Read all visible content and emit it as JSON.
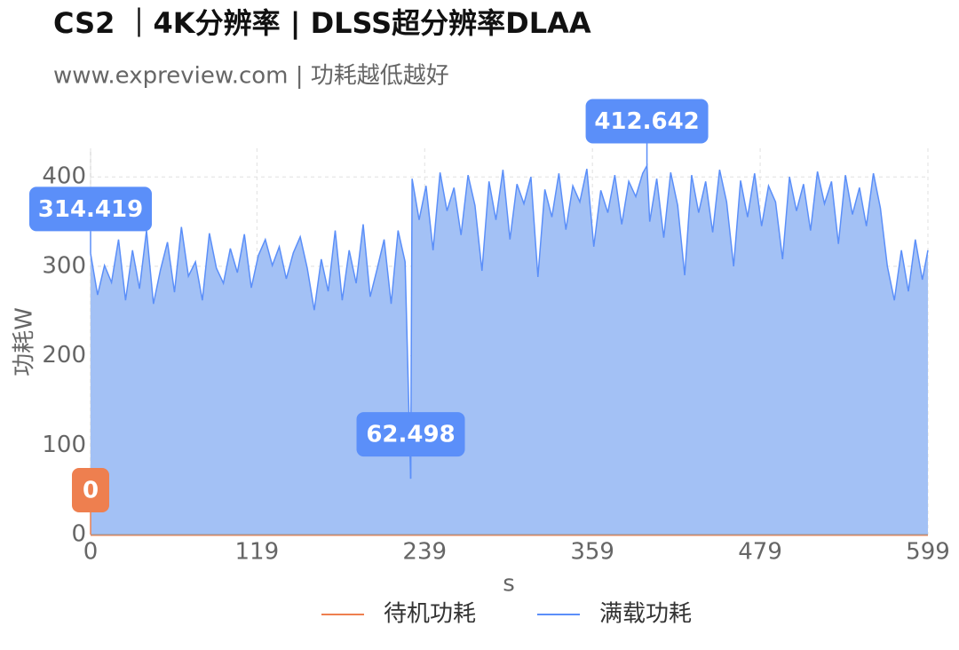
{
  "chart_data": {
    "type": "area-line",
    "title": "CS2 ｜4K分辨率 | DLSS超分辨率DLAA",
    "subtitle": "www.expreview.com | 功耗越低越好",
    "x_label": "s",
    "y_label": "功耗W",
    "xlim": [
      0,
      599
    ],
    "xticks": [
      0,
      119,
      239,
      359,
      479,
      599
    ],
    "ylim": [
      0,
      432
    ],
    "yticks": [
      0,
      100,
      200,
      300,
      400
    ],
    "grid": true,
    "legend": "bottom",
    "x": [
      0,
      5,
      10,
      15,
      20,
      25,
      30,
      35,
      40,
      45,
      50,
      55,
      60,
      65,
      70,
      75,
      80,
      85,
      90,
      95,
      100,
      105,
      110,
      115,
      120,
      125,
      130,
      135,
      140,
      145,
      150,
      155,
      160,
      165,
      170,
      175,
      180,
      185,
      190,
      195,
      200,
      205,
      210,
      215,
      220,
      225,
      229,
      230,
      235,
      240,
      245,
      250,
      255,
      260,
      265,
      270,
      275,
      280,
      285,
      290,
      295,
      300,
      305,
      310,
      315,
      320,
      325,
      330,
      335,
      340,
      345,
      350,
      355,
      360,
      365,
      370,
      375,
      380,
      385,
      390,
      395,
      398,
      400,
      405,
      410,
      415,
      420,
      425,
      430,
      435,
      440,
      445,
      450,
      455,
      460,
      465,
      470,
      475,
      480,
      485,
      490,
      495,
      500,
      505,
      510,
      515,
      520,
      525,
      530,
      535,
      540,
      545,
      550,
      555,
      560,
      565,
      570,
      575,
      580,
      585,
      590,
      595,
      599
    ],
    "series": [
      {
        "name": "待机功耗",
        "color": "#ee7f4f",
        "mark_points": [
          "first"
        ],
        "values": [
          0,
          0,
          0,
          0,
          0,
          0,
          0,
          0,
          0,
          0,
          0,
          0,
          0,
          0,
          0,
          0,
          0,
          0,
          0,
          0,
          0,
          0,
          0,
          0,
          0,
          0,
          0,
          0,
          0,
          0,
          0,
          0,
          0,
          0,
          0,
          0,
          0,
          0,
          0,
          0,
          0,
          0,
          0,
          0,
          0,
          0,
          0,
          0,
          0,
          0,
          0,
          0,
          0,
          0,
          0,
          0,
          0,
          0,
          0,
          0,
          0,
          0,
          0,
          0,
          0,
          0,
          0,
          0,
          0,
          0,
          0,
          0,
          0,
          0,
          0,
          0,
          0,
          0,
          0,
          0,
          0,
          0,
          0,
          0,
          0,
          0,
          0,
          0,
          0,
          0,
          0,
          0,
          0,
          0,
          0,
          0,
          0,
          0,
          0,
          0,
          0,
          0,
          0,
          0,
          0,
          0,
          0,
          0,
          0,
          0,
          0,
          0,
          0,
          0,
          0,
          0,
          0,
          0,
          0,
          0,
          0,
          0,
          0
        ]
      },
      {
        "name": "满载功耗",
        "color": "#5b8ff9",
        "area_color": "#a3c1f5",
        "mark_points": [
          "first",
          "min",
          "max"
        ],
        "values": [
          314.419,
          268,
          301,
          282,
          330,
          262,
          318,
          275,
          340,
          258,
          296,
          327,
          271,
          344,
          289,
          305,
          262,
          337,
          298,
          281,
          320,
          293,
          336,
          276,
          312,
          330,
          301,
          322,
          286,
          315,
          333,
          298,
          251,
          308,
          272,
          340,
          262,
          318,
          281,
          347,
          266,
          297,
          330,
          258,
          340,
          305,
          62.498,
          398,
          352,
          390,
          318,
          405,
          362,
          388,
          335,
          402,
          368,
          295,
          395,
          352,
          408,
          330,
          392,
          370,
          400,
          288,
          386,
          355,
          404,
          341,
          390,
          372,
          409,
          322,
          385,
          360,
          402,
          347,
          395,
          378,
          404,
          412.642,
          350,
          398,
          332,
          405,
          368,
          290,
          402,
          360,
          395,
          338,
          408,
          372,
          300,
          396,
          355,
          404,
          345,
          390,
          372,
          308,
          400,
          362,
          392,
          340,
          406,
          370,
          395,
          325,
          402,
          358,
          388,
          345,
          404,
          365,
          300,
          262,
          318,
          272,
          330,
          285,
          318
        ]
      }
    ]
  }
}
